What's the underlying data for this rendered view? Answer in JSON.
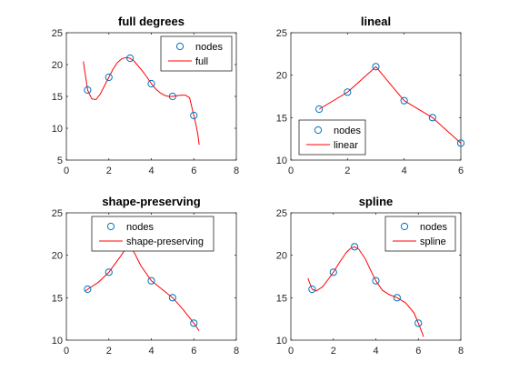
{
  "chart_data": [
    {
      "id": "full",
      "type": "line",
      "title": "full degrees",
      "xlim": [
        0,
        8
      ],
      "ylim": [
        5,
        25
      ],
      "xticks": [
        0,
        2,
        4,
        6,
        8
      ],
      "yticks": [
        5,
        10,
        15,
        20,
        25
      ],
      "legend": {
        "placement": "top-right",
        "entries": [
          "nodes",
          "full"
        ]
      },
      "nodes": {
        "name": "nodes",
        "x": [
          1,
          2,
          3,
          4,
          5,
          6
        ],
        "y": [
          16,
          18,
          21,
          17,
          15,
          12
        ]
      },
      "curve": {
        "name": "full",
        "x": [
          0.8,
          1.0,
          1.2,
          1.4,
          1.6,
          1.8,
          2.0,
          2.2,
          2.4,
          2.6,
          2.8,
          3.0,
          3.2,
          3.4,
          3.6,
          3.8,
          4.0,
          4.2,
          4.4,
          4.6,
          4.8,
          5.0,
          5.2,
          5.4,
          5.6,
          5.8,
          6.0,
          6.1,
          6.2,
          6.25
        ],
        "y": [
          20.5,
          16.0,
          14.6,
          14.5,
          15.4,
          16.7,
          18.0,
          19.3,
          20.3,
          20.9,
          21.1,
          21.0,
          20.5,
          19.7,
          18.9,
          18.0,
          17.0,
          16.2,
          15.6,
          15.2,
          15.0,
          15.0,
          15.1,
          15.2,
          15.2,
          14.8,
          12.0,
          10.6,
          8.8,
          7.4
        ]
      }
    },
    {
      "id": "lineal",
      "type": "line",
      "title": "lineal",
      "xlim": [
        0,
        6
      ],
      "ylim": [
        10,
        25
      ],
      "xticks": [
        0,
        2,
        4,
        6
      ],
      "yticks": [
        10,
        15,
        20,
        25
      ],
      "legend": {
        "placement": "bottom-left",
        "entries": [
          "nodes",
          "linear"
        ]
      },
      "nodes": {
        "name": "nodes",
        "x": [
          1,
          2,
          3,
          4,
          5,
          6
        ],
        "y": [
          16,
          18,
          21,
          17,
          15,
          12
        ]
      },
      "curve": {
        "name": "linear",
        "x": [
          1,
          2,
          3,
          4,
          5,
          6
        ],
        "y": [
          16,
          18,
          21,
          17,
          15,
          12
        ]
      }
    },
    {
      "id": "pchip",
      "type": "line",
      "title": "shape-preserving",
      "xlim": [
        0,
        8
      ],
      "ylim": [
        10,
        25
      ],
      "xticks": [
        0,
        2,
        4,
        6,
        8
      ],
      "yticks": [
        10,
        15,
        20,
        25
      ],
      "legend": {
        "placement": "top-center",
        "entries": [
          "nodes",
          "shape-preserving"
        ]
      },
      "nodes": {
        "name": "nodes",
        "x": [
          1,
          2,
          3,
          4,
          5,
          6
        ],
        "y": [
          16,
          18,
          21,
          17,
          15,
          12
        ]
      },
      "curve": {
        "name": "shape-preserving",
        "x": [
          0.9,
          1.0,
          1.5,
          2.0,
          2.5,
          2.8,
          3.0,
          3.2,
          3.5,
          4.0,
          4.5,
          5.0,
          5.5,
          6.0,
          6.25
        ],
        "y": [
          15.8,
          16.0,
          16.8,
          18.0,
          19.7,
          20.8,
          21.0,
          20.3,
          18.8,
          17.0,
          16.0,
          15.0,
          13.6,
          12.0,
          11.1
        ]
      }
    },
    {
      "id": "spline",
      "type": "line",
      "title": "spline",
      "xlim": [
        0,
        8
      ],
      "ylim": [
        10,
        25
      ],
      "xticks": [
        0,
        2,
        4,
        6,
        8
      ],
      "yticks": [
        10,
        15,
        20,
        25
      ],
      "legend": {
        "placement": "top-right",
        "entries": [
          "nodes",
          "spline"
        ]
      },
      "nodes": {
        "name": "nodes",
        "x": [
          1,
          2,
          3,
          4,
          5,
          6
        ],
        "y": [
          16,
          18,
          21,
          17,
          15,
          12
        ]
      },
      "curve": {
        "name": "spline",
        "x": [
          0.8,
          1.0,
          1.2,
          1.5,
          1.8,
          2.0,
          2.3,
          2.6,
          2.8,
          3.0,
          3.2,
          3.5,
          3.8,
          4.0,
          4.3,
          4.6,
          5.0,
          5.4,
          5.8,
          6.0,
          6.25
        ],
        "y": [
          17.3,
          16.0,
          15.8,
          16.3,
          17.3,
          18.0,
          19.2,
          20.3,
          20.8,
          21.0,
          20.7,
          19.6,
          18.0,
          17.0,
          15.9,
          15.4,
          15.0,
          14.4,
          13.2,
          12.0,
          10.4
        ]
      }
    }
  ],
  "colors": {
    "marker": "#0072BD",
    "curve": "#FF0000",
    "axes": "#262626",
    "background": "#FFFFFF"
  }
}
